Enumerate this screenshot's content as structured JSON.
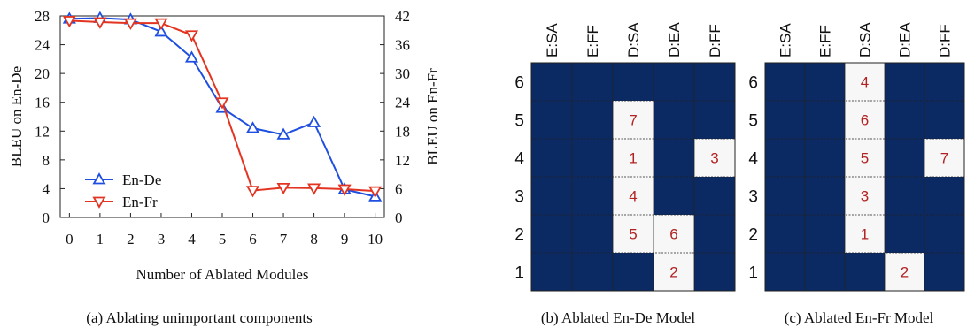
{
  "captions": {
    "a": "(a) Ablating unimportant components",
    "b": "(b) Ablated En-De Model",
    "c": "(c) Ablated En-Fr Model"
  },
  "colors": {
    "en_de": "#1f4fe0",
    "en_fr": "#e33422",
    "heat_dark": "#0b2a63",
    "heat_light": "#f7f7f7",
    "heat_text": "#b22222"
  },
  "chart_data": [
    {
      "type": "line",
      "x": [
        0,
        1,
        2,
        3,
        4,
        5,
        6,
        7,
        8,
        9,
        10
      ],
      "xlabel": "Number of Ablated Modules",
      "ylabel": "BLEU on En-De",
      "y2label": "BLEU on En-Fr",
      "ylim": [
        0,
        28
      ],
      "y2lim": [
        0,
        42
      ],
      "yticks": [
        0,
        4,
        8,
        12,
        16,
        20,
        24,
        28
      ],
      "y2ticks": [
        0,
        6,
        12,
        18,
        24,
        30,
        36,
        42
      ],
      "grid": false,
      "legend": "bottom-left",
      "series": [
        {
          "name": "En-De",
          "axis": "left",
          "marker": "triangle-up",
          "values": [
            27.6,
            27.7,
            27.5,
            25.8,
            22.2,
            15.2,
            12.4,
            11.5,
            13.2,
            3.9,
            2.9
          ]
        },
        {
          "name": "En-Fr",
          "axis": "right",
          "marker": "triangle-down",
          "values": [
            41.0,
            40.7,
            40.5,
            40.5,
            38.0,
            24.0,
            5.6,
            6.2,
            6.1,
            5.9,
            5.5
          ]
        }
      ]
    },
    {
      "type": "heatmap",
      "columns": [
        "E:SA",
        "E:FF",
        "D:SA",
        "D:EA",
        "D:FF"
      ],
      "rows": [
        "6",
        "5",
        "4",
        "3",
        "2",
        "1"
      ],
      "cells": [
        [
          "",
          "",
          "",
          "",
          ""
        ],
        [
          "",
          "",
          "7",
          "",
          ""
        ],
        [
          "",
          "",
          "1",
          "",
          "3"
        ],
        [
          "",
          "",
          "4",
          "",
          ""
        ],
        [
          "",
          "",
          "5",
          "6",
          ""
        ],
        [
          "",
          "",
          "",
          "2",
          ""
        ]
      ]
    },
    {
      "type": "heatmap",
      "columns": [
        "E:SA",
        "E:FF",
        "D:SA",
        "D:EA",
        "D:FF"
      ],
      "rows": [
        "6",
        "5",
        "4",
        "3",
        "2",
        "1"
      ],
      "cells": [
        [
          "",
          "",
          "4",
          "",
          ""
        ],
        [
          "",
          "",
          "6",
          "",
          ""
        ],
        [
          "",
          "",
          "5",
          "",
          "7"
        ],
        [
          "",
          "",
          "3",
          "",
          ""
        ],
        [
          "",
          "",
          "1",
          "",
          ""
        ],
        [
          "",
          "",
          "",
          "2",
          ""
        ]
      ]
    }
  ]
}
